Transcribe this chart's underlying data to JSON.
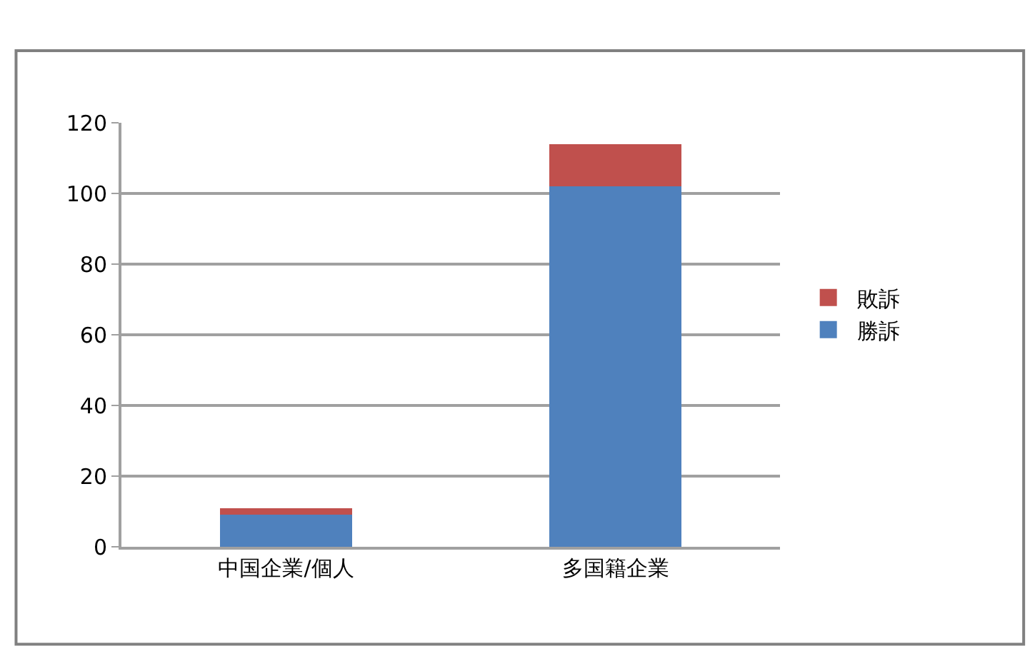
{
  "chart_data": {
    "type": "bar",
    "categories": [
      "中国企業/個人",
      "多国籍企業"
    ],
    "series": [
      {
        "name": "勝訴",
        "color": "#4f81bd",
        "values": [
          9,
          102
        ]
      },
      {
        "name": "敗訴",
        "color": "#c0504d",
        "values": [
          2,
          12
        ]
      }
    ],
    "stacked": true,
    "ylim": [
      0,
      120
    ],
    "yticks": [
      0,
      20,
      40,
      60,
      80,
      100,
      120
    ],
    "grid": "y",
    "legend": "right"
  }
}
